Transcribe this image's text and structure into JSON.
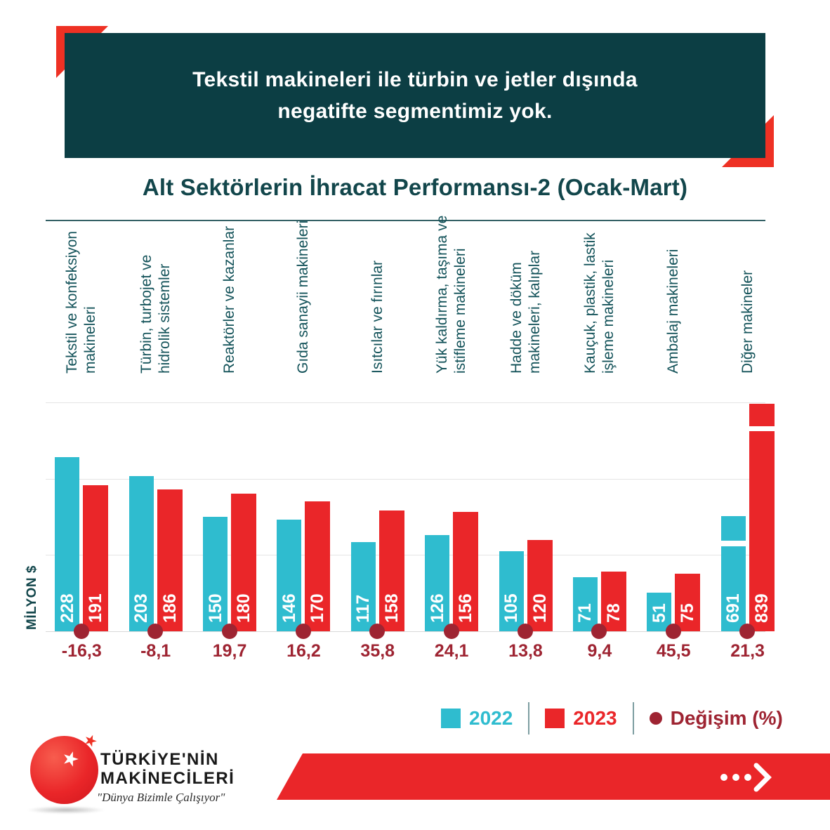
{
  "header": {
    "line1": "Tekstil makineleri ile türbin ve jetler dışında",
    "line2": "negatifte segmentimiz yok."
  },
  "chart": {
    "title": "Alt Sektörlerin İhracat Performansı-2 (Ocak-Mart)",
    "ylabel": "MİLYON $"
  },
  "chart_data": {
    "type": "bar",
    "title": "Alt Sektörlerin İhracat Performansı-2 (Ocak-Mart)",
    "xlabel": "",
    "ylabel": "MİLYON $",
    "ylim": [
      0,
      300
    ],
    "gridlines": [
      100,
      200,
      300
    ],
    "grid": true,
    "legend_position": "bottom",
    "categories": [
      "Tekstil ve konfeksiyon\nmakineleri",
      "Türbin, turbojet ve\nhidrolik sistemler",
      "Reaktörler ve kazanlar",
      "Gıda sanayii makineleri",
      "Isıtcılar ve fırınlar",
      "Yük kaldırma, taşıma ve\nistifleme makineleri",
      "Hadde ve döküm\nmakineleri, kalıplar",
      "Kauçuk, plastik, lastik\nişleme makineleri",
      "Ambalaj makineleri",
      "Diğer makineler"
    ],
    "series": [
      {
        "name": "2022",
        "color": "#2fbccf",
        "values": [
          228,
          203,
          150,
          146,
          117,
          126,
          105,
          71,
          51,
          691
        ]
      },
      {
        "name": "2023",
        "color": "#ea2629",
        "values": [
          191,
          186,
          180,
          170,
          158,
          156,
          120,
          78,
          75,
          839
        ]
      }
    ],
    "change_pct": [
      -16.3,
      -8.1,
      19.7,
      16.2,
      35.8,
      24.1,
      13.8,
      9.4,
      45.5,
      21.3
    ],
    "change_display": [
      "-16,3",
      "-8,1",
      "19,7",
      "16,2",
      "35,8",
      "24,1",
      "13,8",
      "9,4",
      "45,5",
      "21,3"
    ],
    "axis_break": {
      "category": "Diğer makineler",
      "note": "last pair of bars truncated with white break marks"
    }
  },
  "legend": {
    "items": [
      {
        "label": "2022",
        "color": "#2fbccf"
      },
      {
        "label": "2023",
        "color": "#ea2629"
      },
      {
        "label": "Değişim (%)",
        "color": "#9e2432"
      }
    ]
  },
  "footer": {
    "brand_line1": "TÜRKİYE'NİN",
    "brand_line2": "MAKİNECİLERİ",
    "slogan": "\"Dünya Bizimle Çalışıyor\"",
    "star": "★"
  },
  "colors": {
    "header_bg": "#0c3e44",
    "accent_red": "#ee3124",
    "bar_2022": "#2fbccf",
    "bar_2023": "#ea2629",
    "change_maroon": "#9e2432",
    "title_teal": "#12464b",
    "gridline": "#e4e4e4"
  }
}
